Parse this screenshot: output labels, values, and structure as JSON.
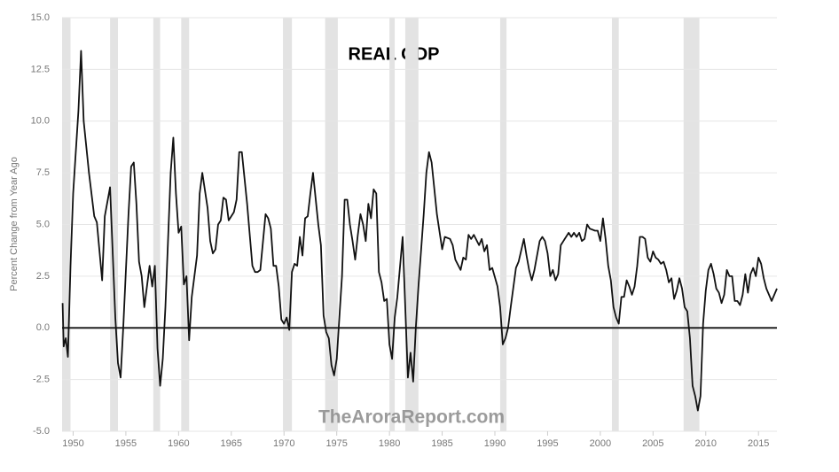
{
  "chart_data": {
    "type": "line",
    "title": "REAL GDP",
    "ylabel": "Percent Change from Year Ago",
    "watermark": "TheAroraReport.com",
    "color": "#111111",
    "recession_color": "#e3e3e3",
    "grid": true,
    "xlim": [
      1948.95,
      2016.75
    ],
    "ylim": [
      -5,
      15
    ],
    "xticks": [
      1950,
      1955,
      1960,
      1965,
      1970,
      1975,
      1980,
      1985,
      1990,
      1995,
      2000,
      2005,
      2010,
      2015
    ],
    "yticks": [
      {
        "value": -5,
        "label": "-5.0"
      },
      -2.5,
      {
        "value": 0,
        "label": "0.0"
      },
      2.5,
      {
        "value": 5,
        "label": "5.0"
      },
      7.5,
      {
        "value": 10,
        "label": "10.0"
      },
      12.5,
      {
        "value": 15,
        "label": "15.0"
      }
    ],
    "recessions": [
      [
        1948.95,
        1949.75
      ],
      [
        1953.5,
        1954.25
      ],
      [
        1957.6,
        1958.25
      ],
      [
        1960.25,
        1961.0
      ],
      [
        1969.9,
        1970.75
      ],
      [
        1973.9,
        1975.1
      ],
      [
        1980.0,
        1980.5
      ],
      [
        1981.5,
        1982.75
      ],
      [
        1990.5,
        1991.1
      ],
      [
        2001.1,
        2001.75
      ],
      [
        2007.9,
        2009.4
      ]
    ],
    "x": [
      1949.0,
      1949.1,
      1949.3,
      1949.5,
      1949.75,
      1950.0,
      1950.5,
      1950.75,
      1951.0,
      1951.5,
      1952.0,
      1952.25,
      1952.75,
      1953.0,
      1953.5,
      1954.0,
      1954.25,
      1954.5,
      1954.75,
      1955.25,
      1955.5,
      1955.75,
      1956.0,
      1956.25,
      1956.5,
      1956.75,
      1957.25,
      1957.5,
      1957.75,
      1958.0,
      1958.25,
      1958.5,
      1958.75,
      1959.25,
      1959.5,
      1959.75,
      1960.0,
      1960.25,
      1960.5,
      1960.75,
      1961.0,
      1961.25,
      1961.75,
      1962.0,
      1962.25,
      1962.75,
      1963.0,
      1963.25,
      1963.5,
      1963.75,
      1964.0,
      1964.25,
      1964.5,
      1964.75,
      1965.25,
      1965.5,
      1965.75,
      1966.0,
      1966.5,
      1967.0,
      1967.25,
      1967.5,
      1967.75,
      1968.25,
      1968.5,
      1968.75,
      1969.0,
      1969.25,
      1969.5,
      1969.75,
      1970.0,
      1970.25,
      1970.5,
      1970.75,
      1971.0,
      1971.25,
      1971.5,
      1971.75,
      1972.0,
      1972.25,
      1972.5,
      1972.75,
      1973.25,
      1973.5,
      1973.75,
      1974.0,
      1974.25,
      1974.5,
      1974.75,
      1975.0,
      1975.25,
      1975.5,
      1975.75,
      1976.0,
      1976.25,
      1976.5,
      1976.75,
      1977.0,
      1977.25,
      1977.5,
      1977.75,
      1978.0,
      1978.25,
      1978.5,
      1978.75,
      1979.0,
      1979.25,
      1979.5,
      1979.75,
      1980.0,
      1980.25,
      1980.5,
      1980.75,
      1981.25,
      1981.5,
      1981.75,
      1982.0,
      1982.25,
      1982.5,
      1982.75,
      1983.25,
      1983.5,
      1983.75,
      1984.0,
      1984.5,
      1985.0,
      1985.25,
      1985.75,
      1986.0,
      1986.25,
      1986.75,
      1987.0,
      1987.25,
      1987.5,
      1987.75,
      1988.0,
      1988.5,
      1988.75,
      1989.0,
      1989.25,
      1989.5,
      1989.75,
      1990.25,
      1990.5,
      1990.75,
      1991.0,
      1991.25,
      1991.5,
      1992.0,
      1992.25,
      1992.75,
      1993.0,
      1993.25,
      1993.5,
      1993.75,
      1994.25,
      1994.5,
      1994.75,
      1995.0,
      1995.25,
      1995.5,
      1995.75,
      1996.0,
      1996.25,
      1996.5,
      1996.75,
      1997.0,
      1997.25,
      1997.5,
      1997.75,
      1998.0,
      1998.25,
      1998.5,
      1998.75,
      1999.0,
      1999.5,
      1999.75,
      2000.0,
      2000.25,
      2000.5,
      2000.75,
      2001.0,
      2001.25,
      2001.5,
      2001.75,
      2002.0,
      2002.25,
      2002.5,
      2002.75,
      2003.0,
      2003.25,
      2003.5,
      2003.75,
      2004.0,
      2004.25,
      2004.5,
      2004.75,
      2005.0,
      2005.25,
      2005.5,
      2005.75,
      2006.0,
      2006.25,
      2006.5,
      2006.75,
      2007.0,
      2007.25,
      2007.5,
      2007.75,
      2008.0,
      2008.25,
      2008.5,
      2008.75,
      2009.0,
      2009.25,
      2009.5,
      2009.75,
      2010.0,
      2010.25,
      2010.5,
      2010.75,
      2011.0,
      2011.25,
      2011.5,
      2011.75,
      2012.0,
      2012.25,
      2012.5,
      2012.75,
      2013.0,
      2013.25,
      2013.5,
      2013.75,
      2014.0,
      2014.25,
      2014.5,
      2014.75,
      2015.0,
      2015.25,
      2015.5,
      2015.75,
      2016.0,
      2016.25,
      2016.5,
      2016.75
    ],
    "values": [
      1.2,
      -0.9,
      -0.5,
      -1.4,
      3.0,
      6.5,
      10.5,
      13.4,
      10.0,
      7.5,
      5.4,
      5.1,
      2.3,
      5.4,
      6.8,
      0.5,
      -1.7,
      -2.4,
      0.0,
      5.5,
      7.8,
      8.0,
      6.0,
      3.2,
      2.5,
      1.0,
      3.0,
      2.0,
      3.0,
      -1.0,
      -2.8,
      -1.5,
      1.0,
      7.5,
      9.2,
      6.5,
      4.6,
      4.9,
      2.1,
      2.5,
      -0.6,
      1.5,
      3.5,
      6.5,
      7.5,
      5.8,
      4.2,
      3.6,
      3.8,
      5.0,
      5.2,
      6.3,
      6.2,
      5.2,
      5.6,
      6.2,
      8.5,
      8.5,
      6.0,
      3.0,
      2.7,
      2.7,
      2.8,
      5.5,
      5.3,
      4.8,
      3.0,
      3.0,
      2.0,
      0.4,
      0.2,
      0.5,
      -0.1,
      2.7,
      3.1,
      3.0,
      4.4,
      3.5,
      5.3,
      5.4,
      6.5,
      7.5,
      5.0,
      4.0,
      0.6,
      -0.2,
      -0.5,
      -1.8,
      -2.3,
      -1.5,
      0.5,
      2.5,
      6.2,
      6.2,
      5.0,
      4.2,
      3.3,
      4.5,
      5.5,
      5.0,
      4.2,
      6.0,
      5.3,
      6.7,
      6.5,
      2.7,
      2.2,
      1.3,
      1.4,
      -0.8,
      -1.5,
      0.5,
      1.5,
      4.4,
      1.0,
      -2.4,
      -1.2,
      -2.6,
      0.0,
      2.0,
      5.5,
      7.5,
      8.5,
      8.0,
      5.5,
      3.8,
      4.4,
      4.3,
      4.0,
      3.3,
      2.8,
      3.4,
      3.3,
      4.5,
      4.3,
      4.5,
      4.0,
      4.3,
      3.7,
      4.0,
      2.8,
      2.9,
      2.0,
      1.0,
      -0.8,
      -0.5,
      0.0,
      1.0,
      2.9,
      3.2,
      4.3,
      3.5,
      2.8,
      2.3,
      2.8,
      4.2,
      4.4,
      4.2,
      3.6,
      2.5,
      2.8,
      2.3,
      2.6,
      4.0,
      4.2,
      4.4,
      4.6,
      4.4,
      4.6,
      4.4,
      4.6,
      4.2,
      4.3,
      5.0,
      4.8,
      4.7,
      4.7,
      4.2,
      5.3,
      4.3,
      3.0,
      2.3,
      1.0,
      0.5,
      0.2,
      1.5,
      1.5,
      2.3,
      2.0,
      1.6,
      2.0,
      3.0,
      4.4,
      4.4,
      4.3,
      3.4,
      3.2,
      3.7,
      3.4,
      3.3,
      3.1,
      3.2,
      2.8,
      2.2,
      2.4,
      1.4,
      1.8,
      2.4,
      1.9,
      1.0,
      0.8,
      -0.5,
      -2.8,
      -3.3,
      -4.0,
      -3.3,
      0.2,
      1.8,
      2.8,
      3.1,
      2.6,
      1.9,
      1.7,
      1.2,
      1.6,
      2.8,
      2.5,
      2.5,
      1.3,
      1.3,
      1.1,
      1.6,
      2.6,
      1.7,
      2.6,
      2.9,
      2.5,
      3.4,
      3.1,
      2.4,
      1.9,
      1.6,
      1.3,
      1.6,
      1.9
    ]
  }
}
